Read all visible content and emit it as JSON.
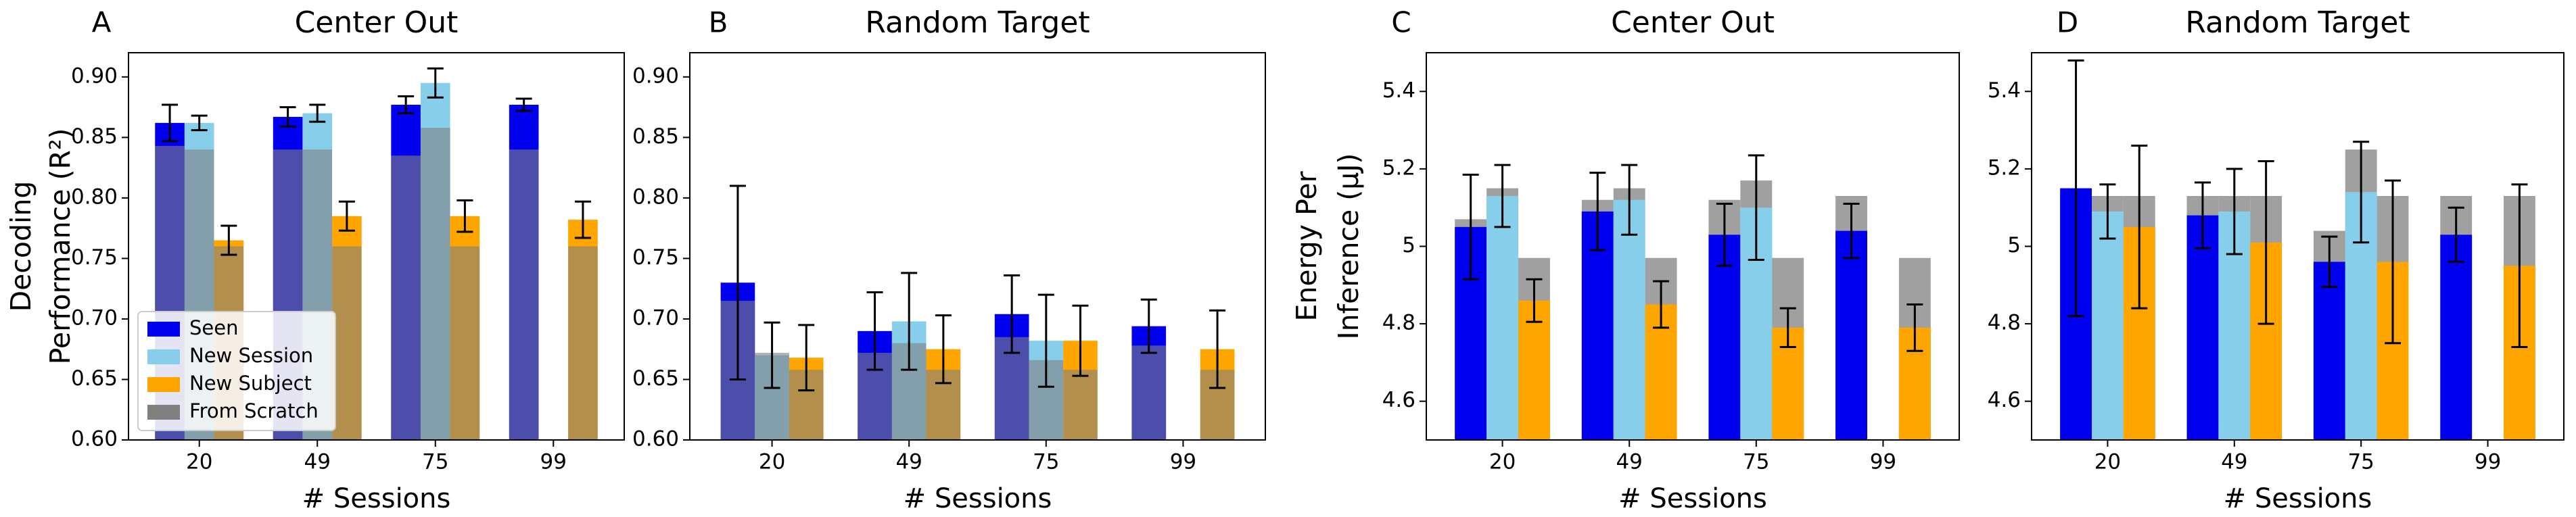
{
  "chart_data": [
    {
      "type": "bar",
      "panel_label": "A",
      "title": "Center Out",
      "ylabel": [
        "Decoding",
        "Performance (R²)"
      ],
      "xlabel": "# Sessions",
      "categories": [
        "20",
        "49",
        "75",
        "99"
      ],
      "overlay": "front",
      "legend": "lower left",
      "ylim": [
        0.6,
        0.92
      ],
      "yticks": [
        {
          "value": 0.6,
          "label": "0.60"
        },
        0.65,
        {
          "value": 0.7,
          "label": "0.70"
        },
        0.75,
        {
          "value": 0.8,
          "label": "0.80"
        },
        0.85,
        {
          "value": 0.9,
          "label": "0.90"
        }
      ],
      "series": [
        {
          "name": "Seen",
          "color": "#0000ee",
          "values": [
            0.862,
            0.867,
            0.877,
            0.877
          ],
          "errors": [
            0.015,
            0.008,
            0.007,
            0.005
          ]
        },
        {
          "name": "New Session",
          "color": "#87ceeb",
          "values": [
            0.862,
            0.87,
            0.895,
            null
          ],
          "errors": [
            0.006,
            0.007,
            0.012,
            null
          ]
        },
        {
          "name": "New Subject",
          "color": "#ffa500",
          "values": [
            0.765,
            0.785,
            0.785,
            0.782
          ],
          "errors": [
            0.012,
            0.012,
            0.013,
            0.015
          ]
        },
        {
          "name": "From Scratch",
          "color": "#808080",
          "values": [
            [
              0.843,
              0.84,
              0.76
            ],
            [
              0.84,
              0.84,
              0.76
            ],
            [
              0.835,
              0.858,
              0.76
            ],
            [
              0.84,
              null,
              0.76
            ]
          ]
        }
      ]
    },
    {
      "type": "bar",
      "panel_label": "B",
      "title": "Random Target",
      "xlabel": "# Sessions",
      "categories": [
        "20",
        "49",
        "75",
        "99"
      ],
      "overlay": "front",
      "ylim": [
        0.6,
        0.92
      ],
      "yticks": [
        {
          "value": 0.6,
          "label": "0.60"
        },
        0.65,
        {
          "value": 0.7,
          "label": "0.70"
        },
        0.75,
        {
          "value": 0.8,
          "label": "0.80"
        },
        0.85,
        {
          "value": 0.9,
          "label": "0.90"
        }
      ],
      "series": [
        {
          "name": "Seen",
          "color": "#0000ee",
          "values": [
            0.73,
            0.69,
            0.704,
            0.694
          ],
          "errors": [
            0.08,
            0.032,
            0.032,
            0.022
          ]
        },
        {
          "name": "New Session",
          "color": "#87ceeb",
          "values": [
            0.67,
            0.698,
            0.682,
            null
          ],
          "errors": [
            0.027,
            0.04,
            0.038,
            null
          ]
        },
        {
          "name": "New Subject",
          "color": "#ffa500",
          "values": [
            0.668,
            0.675,
            0.682,
            0.675
          ],
          "errors": [
            0.027,
            0.028,
            0.029,
            0.032
          ]
        },
        {
          "name": "From Scratch",
          "color": "#808080",
          "values": [
            [
              0.715,
              0.672,
              0.658
            ],
            [
              0.672,
              0.68,
              0.658
            ],
            [
              0.685,
              0.666,
              0.658
            ],
            [
              0.678,
              null,
              0.658
            ]
          ]
        }
      ]
    },
    {
      "type": "bar",
      "panel_label": "C",
      "title": "Center Out",
      "ylabel": [
        "Energy Per",
        "Inference (µJ)"
      ],
      "xlabel": "# Sessions",
      "categories": [
        "20",
        "49",
        "75",
        "99"
      ],
      "overlay": "back",
      "ylim": [
        4.5,
        5.5
      ],
      "yticks": [
        4.6,
        4.8,
        5.0,
        5.2,
        5.4
      ],
      "series": [
        {
          "name": "Seen",
          "color": "#0000ee",
          "values": [
            5.05,
            5.09,
            5.03,
            5.04
          ],
          "errors": [
            0.135,
            0.1,
            0.08,
            0.07
          ]
        },
        {
          "name": "New Session",
          "color": "#87ceeb",
          "values": [
            5.13,
            5.12,
            5.1,
            null
          ],
          "errors": [
            0.08,
            0.09,
            0.135,
            null
          ]
        },
        {
          "name": "New Subject",
          "color": "#ffa500",
          "values": [
            4.86,
            4.85,
            4.79,
            4.79
          ],
          "errors": [
            0.055,
            0.06,
            0.05,
            0.06
          ]
        },
        {
          "name": "From Scratch",
          "color": "#a0a0a0",
          "values": [
            [
              5.07,
              5.15,
              4.97
            ],
            [
              5.12,
              5.15,
              4.97
            ],
            [
              5.12,
              5.17,
              4.97
            ],
            [
              5.13,
              null,
              4.97
            ]
          ]
        }
      ]
    },
    {
      "type": "bar",
      "panel_label": "D",
      "title": "Random Target",
      "xlabel": "# Sessions",
      "categories": [
        "20",
        "49",
        "75",
        "99"
      ],
      "overlay": "back",
      "ylim": [
        4.5,
        5.5
      ],
      "yticks": [
        4.6,
        4.8,
        5.0,
        5.2,
        5.4
      ],
      "series": [
        {
          "name": "Seen",
          "color": "#0000ee",
          "values": [
            5.15,
            5.08,
            4.96,
            5.03
          ],
          "errors": [
            0.33,
            0.085,
            0.065,
            0.07
          ]
        },
        {
          "name": "New Session",
          "color": "#87ceeb",
          "values": [
            5.09,
            5.09,
            5.14,
            null
          ],
          "errors": [
            0.07,
            0.11,
            0.13,
            null
          ]
        },
        {
          "name": "New Subject",
          "color": "#ffa500",
          "values": [
            5.05,
            5.01,
            4.96,
            4.95
          ],
          "errors": [
            0.21,
            0.21,
            0.21,
            0.21
          ]
        },
        {
          "name": "From Scratch",
          "color": "#a0a0a0",
          "values": [
            [
              5.13,
              5.13,
              5.13
            ],
            [
              5.13,
              5.13,
              5.13
            ],
            [
              5.04,
              5.25,
              5.13
            ],
            [
              5.13,
              null,
              5.13
            ]
          ]
        }
      ]
    }
  ]
}
